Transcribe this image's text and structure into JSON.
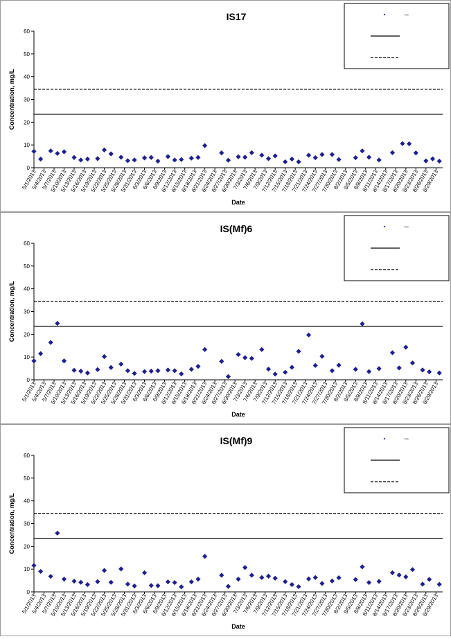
{
  "charts": [
    {
      "id": "is17",
      "chart_data": {
        "type": "scatter",
        "title": "IS17",
        "xlabel": "Date",
        "ylabel": "Concentration, mg/L",
        "ylim": [
          0,
          60
        ],
        "yticks": [
          0,
          10,
          20,
          30,
          40,
          50,
          60
        ],
        "xlim": [
          "5/1/2013",
          "8/31/2013"
        ],
        "xticks": [
          "5/1/2013",
          "5/4/2013",
          "5/7/2013",
          "5/10/2013",
          "5/13/2013",
          "5/16/2013",
          "5/19/2013",
          "5/22/2013",
          "5/25/2013",
          "5/28/2013",
          "5/31/2013",
          "6/3/2013",
          "6/6/2013",
          "6/9/2013",
          "6/12/2013",
          "6/15/2013",
          "6/18/2013",
          "6/21/2013",
          "6/24/2013",
          "6/27/2013",
          "6/30/2013",
          "7/3/2013",
          "7/6/2013",
          "7/9/2013",
          "7/12/2013",
          "7/15/2013",
          "7/18/2013",
          "7/21/2013",
          "7/24/2013",
          "7/27/2013",
          "7/30/2013",
          "8/2/2013",
          "8/5/2013",
          "8/8/2013",
          "8/11/2013",
          "8/14/2013",
          "8/17/2013",
          "8/20/2013",
          "8/23/2013",
          "8/26/2013",
          "8/29/2013"
        ],
        "legend_position": "top-right",
        "grid": false,
        "series": [
          {
            "name": "TSS",
            "marker": "diamond",
            "color": "#1f1f8f",
            "points": [
              [
                "5/1/2013",
                7.2
              ],
              [
                "5/3/2013",
                3.8
              ],
              [
                "5/6/2013",
                7.4
              ],
              [
                "5/8/2013",
                6.3
              ],
              [
                "5/10/2013",
                7.0
              ],
              [
                "5/13/2013",
                4.5
              ],
              [
                "5/15/2013",
                3.4
              ],
              [
                "5/17/2013",
                3.8
              ],
              [
                "5/20/2013",
                4.0
              ],
              [
                "5/22/2013",
                7.8
              ],
              [
                "5/24/2013",
                6.1
              ],
              [
                "5/27/2013",
                4.6
              ],
              [
                "5/29/2013",
                3.1
              ],
              [
                "5/31/2013",
                3.4
              ],
              [
                "6/3/2013",
                4.3
              ],
              [
                "6/5/2013",
                4.5
              ],
              [
                "6/7/2013",
                2.9
              ],
              [
                "6/10/2013",
                4.9
              ],
              [
                "6/12/2013",
                3.4
              ],
              [
                "6/14/2013",
                3.6
              ],
              [
                "6/17/2013",
                4.2
              ],
              [
                "6/19/2013",
                4.5
              ],
              [
                "6/21/2013",
                9.7
              ],
              [
                "6/26/2013",
                6.5
              ],
              [
                "6/28/2013",
                3.3
              ],
              [
                "7/1/2013",
                4.8
              ],
              [
                "7/3/2013",
                4.6
              ],
              [
                "7/5/2013",
                6.6
              ],
              [
                "7/8/2013",
                5.5
              ],
              [
                "7/10/2013",
                4.0
              ],
              [
                "7/12/2013",
                5.2
              ],
              [
                "7/15/2013",
                2.6
              ],
              [
                "7/17/2013",
                3.8
              ],
              [
                "7/19/2013",
                2.6
              ],
              [
                "7/22/2013",
                5.5
              ],
              [
                "7/24/2013",
                4.4
              ],
              [
                "7/26/2013",
                5.8
              ],
              [
                "7/29/2013",
                5.8
              ],
              [
                "7/31/2013",
                3.6
              ],
              [
                "8/5/2013",
                4.4
              ],
              [
                "8/7/2013",
                7.4
              ],
              [
                "8/9/2013",
                4.6
              ],
              [
                "8/12/2013",
                3.4
              ],
              [
                "8/16/2013",
                6.6
              ],
              [
                "8/19/2013",
                10.6
              ],
              [
                "8/21/2013",
                10.5
              ],
              [
                "8/23/2013",
                6.5
              ],
              [
                "8/26/2013",
                3.0
              ],
              [
                "8/28/2013",
                3.9
              ],
              [
                "8/30/2013",
                2.9
              ]
            ]
          },
          {
            "name": "",
            "line": "solid",
            "color": "#000000",
            "constant": 23.5
          },
          {
            "name": "",
            "line": "dashed",
            "color": "#000000",
            "constant": 34.5
          }
        ]
      }
    },
    {
      "id": "ismf6",
      "chart_data": {
        "type": "scatter",
        "title": "IS(Mf)6",
        "xlabel": "Date",
        "ylabel": "Concentration, mg/L",
        "ylim": [
          0,
          60
        ],
        "yticks": [
          0,
          10,
          20,
          30,
          40,
          50,
          60
        ],
        "xlim": [
          "5/1/2013",
          "8/31/2013"
        ],
        "xticks": [
          "5/1/2013",
          "5/4/2013",
          "5/7/2013",
          "5/10/2013",
          "5/13/2013",
          "5/16/2013",
          "5/19/2013",
          "5/22/2013",
          "5/25/2013",
          "5/28/2013",
          "5/31/2013",
          "6/3/2013",
          "6/6/2013",
          "6/9/2013",
          "6/12/2013",
          "6/15/2013",
          "6/18/2013",
          "6/21/2013",
          "6/24/2013",
          "6/27/2013",
          "6/30/2013",
          "7/3/2013",
          "7/6/2013",
          "7/9/2013",
          "7/12/2013",
          "7/15/2013",
          "7/18/2013",
          "7/21/2013",
          "7/24/2013",
          "7/27/2013",
          "7/30/2013",
          "8/2/2013",
          "8/5/2013",
          "8/8/2013",
          "8/11/2013",
          "8/14/2013",
          "8/17/2013",
          "8/20/2013",
          "8/23/2013",
          "8/26/2013",
          "8/29/2013"
        ],
        "legend_position": "top-right",
        "grid": false,
        "series": [
          {
            "name": "TSS",
            "marker": "diamond",
            "color": "#1f1f8f",
            "points": [
              [
                "5/1/2013",
                8.3
              ],
              [
                "5/3/2013",
                11.5
              ],
              [
                "5/6/2013",
                16.4
              ],
              [
                "5/8/2013",
                24.8
              ],
              [
                "5/10/2013",
                8.3
              ],
              [
                "5/13/2013",
                4.2
              ],
              [
                "5/15/2013",
                3.8
              ],
              [
                "5/17/2013",
                3.0
              ],
              [
                "5/20/2013",
                4.5
              ],
              [
                "5/22/2013",
                10.2
              ],
              [
                "5/24/2013",
                5.4
              ],
              [
                "5/27/2013",
                6.9
              ],
              [
                "5/29/2013",
                4.0
              ],
              [
                "5/31/2013",
                2.8
              ],
              [
                "6/3/2013",
                3.6
              ],
              [
                "6/5/2013",
                3.8
              ],
              [
                "6/7/2013",
                4.0
              ],
              [
                "6/10/2013",
                4.3
              ],
              [
                "6/12/2013",
                4.0
              ],
              [
                "6/14/2013",
                2.6
              ],
              [
                "6/17/2013",
                4.6
              ],
              [
                "6/19/2013",
                5.9
              ],
              [
                "6/21/2013",
                13.3
              ],
              [
                "6/26/2013",
                8.1
              ],
              [
                "6/28/2013",
                1.4
              ],
              [
                "7/1/2013",
                11.1
              ],
              [
                "7/3/2013",
                9.7
              ],
              [
                "7/5/2013",
                9.4
              ],
              [
                "7/8/2013",
                13.3
              ],
              [
                "7/10/2013",
                4.7
              ],
              [
                "7/12/2013",
                2.5
              ],
              [
                "7/15/2013",
                3.3
              ],
              [
                "7/17/2013",
                5.5
              ],
              [
                "7/19/2013",
                12.5
              ],
              [
                "7/22/2013",
                19.7
              ],
              [
                "7/24/2013",
                6.3
              ],
              [
                "7/26/2013",
                10.3
              ],
              [
                "7/29/2013",
                4.0
              ],
              [
                "7/31/2013",
                6.4
              ],
              [
                "8/5/2013",
                4.6
              ],
              [
                "8/7/2013",
                24.6
              ],
              [
                "8/9/2013",
                3.6
              ],
              [
                "8/12/2013",
                4.9
              ],
              [
                "8/16/2013",
                11.9
              ],
              [
                "8/18/2013",
                5.2
              ],
              [
                "8/20/2013",
                14.3
              ],
              [
                "8/22/2013",
                7.4
              ],
              [
                "8/25/2013",
                4.3
              ],
              [
                "8/27/2013",
                3.5
              ],
              [
                "8/30/2013",
                3.0
              ]
            ]
          },
          {
            "name": "",
            "line": "solid",
            "color": "#000000",
            "constant": 23.5
          },
          {
            "name": "",
            "line": "dashed",
            "color": "#000000",
            "constant": 34.5
          }
        ]
      }
    },
    {
      "id": "ismf9",
      "chart_data": {
        "type": "scatter",
        "title": "IS(Mf)9",
        "xlabel": "Date",
        "ylabel": "Concentration, mg/L",
        "ylim": [
          0,
          60
        ],
        "yticks": [
          0,
          10,
          20,
          30,
          40,
          50,
          60
        ],
        "xlim": [
          "5/1/2013",
          "8/31/2013"
        ],
        "xticks": [
          "5/1/2013",
          "5/4/2013",
          "5/7/2013",
          "5/10/2013",
          "5/13/2013",
          "5/16/2013",
          "5/19/2013",
          "5/22/2013",
          "5/25/2013",
          "5/28/2013",
          "5/31/2013",
          "6/3/2013",
          "6/6/2013",
          "6/9/2013",
          "6/12/2013",
          "6/15/2013",
          "6/18/2013",
          "6/21/2013",
          "6/24/2013",
          "6/27/2013",
          "6/30/2013",
          "7/3/2013",
          "7/6/2013",
          "7/9/2013",
          "7/12/2013",
          "7/15/2013",
          "7/18/2013",
          "7/21/2013",
          "7/24/2013",
          "7/27/2013",
          "7/30/2013",
          "8/2/2013",
          "8/5/2013",
          "8/8/2013",
          "8/11/2013",
          "8/14/2013",
          "8/17/2013",
          "8/20/2013",
          "8/23/2013",
          "8/26/2013",
          "8/29/2013"
        ],
        "legend_position": "top-right",
        "grid": false,
        "series": [
          {
            "name": "TSS",
            "marker": "diamond",
            "color": "#1f1f8f",
            "points": [
              [
                "5/1/2013",
                11.6
              ],
              [
                "5/3/2013",
                9.0
              ],
              [
                "5/6/2013",
                6.8
              ],
              [
                "5/8/2013",
                25.8
              ],
              [
                "5/10/2013",
                5.6
              ],
              [
                "5/13/2013",
                4.7
              ],
              [
                "5/15/2013",
                4.2
              ],
              [
                "5/17/2013",
                3.2
              ],
              [
                "5/20/2013",
                4.5
              ],
              [
                "5/22/2013",
                9.4
              ],
              [
                "5/24/2013",
                4.2
              ],
              [
                "5/27/2013",
                10.1
              ],
              [
                "5/29/2013",
                3.4
              ],
              [
                "5/31/2013",
                2.6
              ],
              [
                "6/3/2013",
                8.4
              ],
              [
                "6/5/2013",
                2.8
              ],
              [
                "6/7/2013",
                2.7
              ],
              [
                "6/10/2013",
                4.4
              ],
              [
                "6/12/2013",
                4.1
              ],
              [
                "6/14/2013",
                2.2
              ],
              [
                "6/17/2013",
                4.4
              ],
              [
                "6/19/2013",
                5.6
              ],
              [
                "6/21/2013",
                15.6
              ],
              [
                "6/26/2013",
                7.3
              ],
              [
                "6/28/2013",
                2.4
              ],
              [
                "7/1/2013",
                5.6
              ],
              [
                "7/3/2013",
                10.7
              ],
              [
                "7/5/2013",
                7.3
              ],
              [
                "7/8/2013",
                6.3
              ],
              [
                "7/10/2013",
                6.9
              ],
              [
                "7/12/2013",
                6.0
              ],
              [
                "7/15/2013",
                4.5
              ],
              [
                "7/17/2013",
                3.2
              ],
              [
                "7/19/2013",
                2.3
              ],
              [
                "7/22/2013",
                5.7
              ],
              [
                "7/24/2013",
                6.3
              ],
              [
                "7/26/2013",
                3.7
              ],
              [
                "7/29/2013",
                4.8
              ],
              [
                "7/31/2013",
                6.2
              ],
              [
                "8/5/2013",
                5.4
              ],
              [
                "8/7/2013",
                11.0
              ],
              [
                "8/9/2013",
                4.1
              ],
              [
                "8/12/2013",
                4.6
              ],
              [
                "8/16/2013",
                8.4
              ],
              [
                "8/18/2013",
                7.4
              ],
              [
                "8/20/2013",
                6.6
              ],
              [
                "8/22/2013",
                9.8
              ],
              [
                "8/25/2013",
                3.4
              ],
              [
                "8/27/2013",
                5.5
              ],
              [
                "8/30/2013",
                3.3
              ]
            ]
          },
          {
            "name": "",
            "line": "solid",
            "color": "#000000",
            "constant": 23.5
          },
          {
            "name": "",
            "line": "dashed",
            "color": "#000000",
            "constant": 34.5
          }
        ]
      }
    }
  ],
  "colors": {
    "marker": "#1f1f8f",
    "line": "#000000",
    "border": "#9a9a9a"
  }
}
